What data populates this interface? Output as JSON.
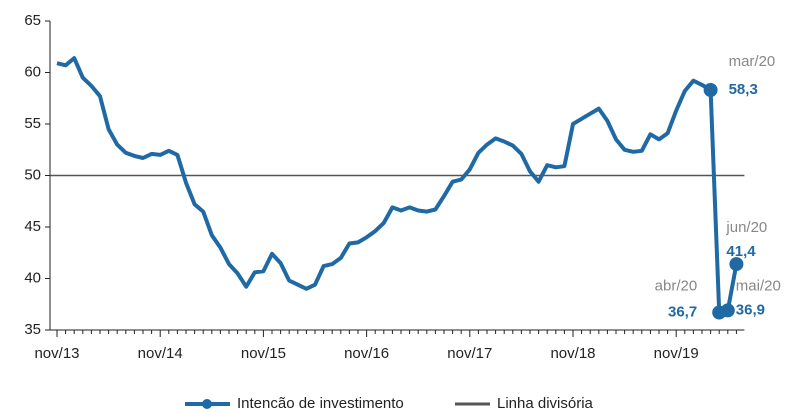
{
  "chart_data": {
    "type": "line",
    "categories": [
      "nov/13",
      null,
      null,
      null,
      null,
      null,
      null,
      null,
      null,
      null,
      null,
      null,
      "nov/14",
      null,
      null,
      null,
      null,
      null,
      null,
      null,
      null,
      null,
      null,
      null,
      "nov/15",
      null,
      null,
      null,
      null,
      null,
      null,
      null,
      null,
      null,
      null,
      null,
      "nov/16",
      null,
      null,
      null,
      null,
      null,
      null,
      null,
      null,
      null,
      null,
      null,
      "nov/17",
      null,
      null,
      null,
      null,
      null,
      null,
      null,
      null,
      null,
      null,
      null,
      "nov/18",
      null,
      null,
      null,
      null,
      null,
      null,
      null,
      null,
      null,
      null,
      null,
      "nov/19",
      null,
      null,
      null,
      null,
      null,
      null,
      null
    ],
    "series": [
      {
        "name": "Intencão de investimento",
        "color": "#1f6aa5",
        "values": [
          60.9,
          60.7,
          61.4,
          59.5,
          58.7,
          57.7,
          54.5,
          53,
          52.2,
          51.9,
          51.7,
          52.1,
          52,
          52.4,
          52,
          49.3,
          47.2,
          46.5,
          44.2,
          43,
          41.4,
          40.5,
          39.2,
          40.6,
          40.7,
          42.4,
          41.5,
          39.8,
          39.4,
          39,
          39.4,
          41.2,
          41.4,
          42,
          43.4,
          43.5,
          44,
          44.6,
          45.4,
          46.9,
          46.6,
          46.9,
          46.6,
          46.5,
          46.7,
          48,
          49.4,
          49.6,
          50.6,
          52.2,
          53,
          53.6,
          53.3,
          52.9,
          52.1,
          50.4,
          49.4,
          51,
          50.8,
          50.9,
          55,
          55.5,
          56,
          56.5,
          55.3,
          53.5,
          52.5,
          52.3,
          52.4,
          54,
          53.5,
          54.1,
          56.3,
          58.2,
          59.2,
          58.8,
          58.3,
          36.7,
          36.9,
          41.4
        ],
        "value_labels": [
          null,
          null,
          null,
          null,
          null,
          null,
          null,
          null,
          null,
          null,
          null,
          null,
          null,
          null,
          null,
          null,
          null,
          null,
          null,
          null,
          null,
          null,
          null,
          null,
          null,
          null,
          null,
          null,
          null,
          null,
          null,
          null,
          null,
          null,
          null,
          null,
          null,
          null,
          null,
          null,
          null,
          null,
          null,
          null,
          null,
          null,
          null,
          null,
          null,
          null,
          null,
          null,
          null,
          null,
          null,
          null,
          null,
          null,
          null,
          null,
          null,
          null,
          null,
          null,
          null,
          null,
          null,
          null,
          null,
          null,
          null,
          null,
          null,
          null,
          null,
          null,
          "58,3",
          "36,7",
          "36,9",
          "41,4"
        ],
        "point_labels": [
          null,
          null,
          null,
          null,
          null,
          null,
          null,
          null,
          null,
          null,
          null,
          null,
          null,
          null,
          null,
          null,
          null,
          null,
          null,
          null,
          null,
          null,
          null,
          null,
          null,
          null,
          null,
          null,
          null,
          null,
          null,
          null,
          null,
          null,
          null,
          null,
          null,
          null,
          null,
          null,
          null,
          null,
          null,
          null,
          null,
          null,
          null,
          null,
          null,
          null,
          null,
          null,
          null,
          null,
          null,
          null,
          null,
          null,
          null,
          null,
          null,
          null,
          null,
          null,
          null,
          null,
          null,
          null,
          null,
          null,
          null,
          null,
          null,
          null,
          null,
          null,
          "mar/20",
          "abr/20",
          "mai/20",
          "jun/20"
        ]
      }
    ],
    "reference_line": {
      "name": "Linha divisória",
      "value": 50,
      "color": "#555555"
    },
    "ylim": [
      35,
      65
    ],
    "yticks": [
      35,
      40,
      45,
      50,
      55,
      60,
      65
    ],
    "legend": "bottom"
  }
}
